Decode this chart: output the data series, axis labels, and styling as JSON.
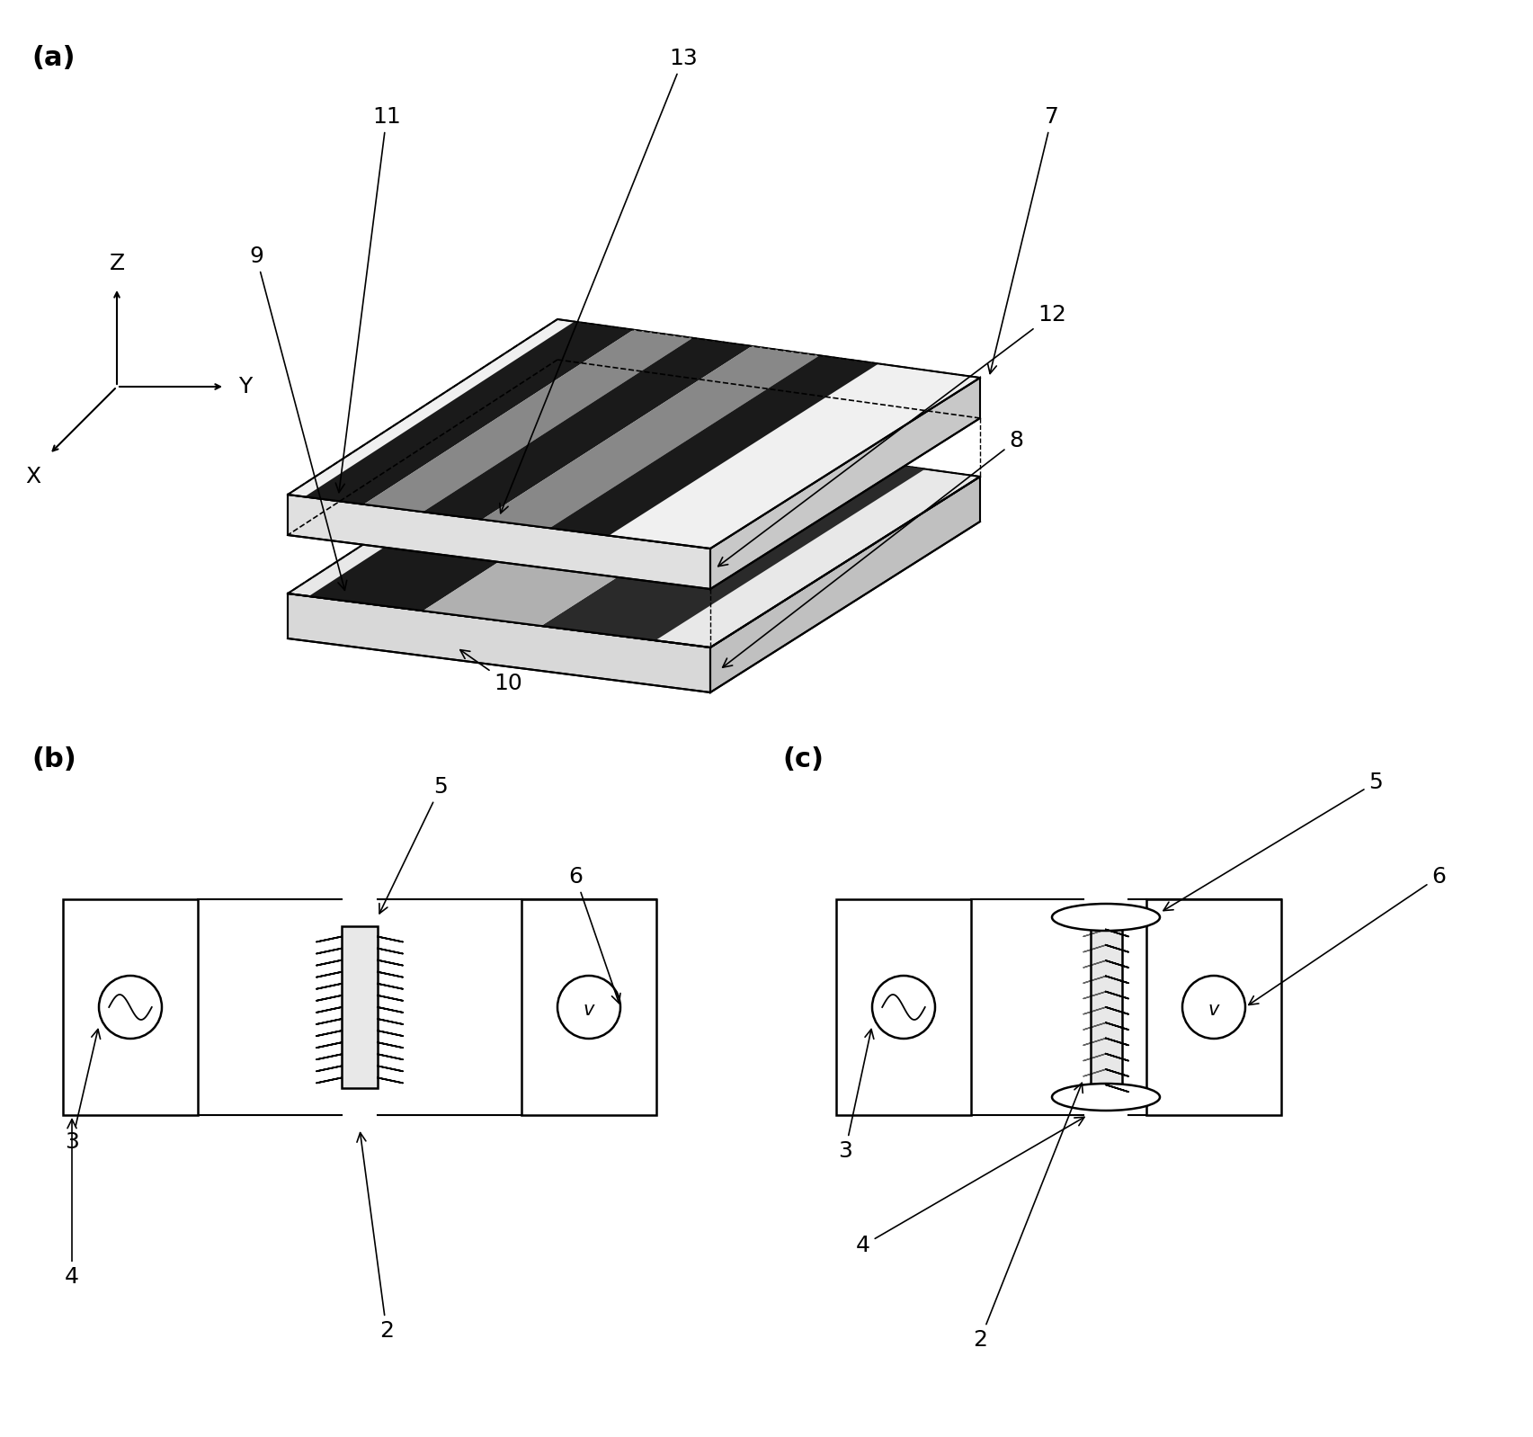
{
  "bg_color": "#ffffff",
  "line_color": "#000000",
  "label_a": "(a)",
  "label_b": "(b)",
  "label_c": "(c)",
  "font_size_label": 22,
  "font_size_numbers": 18,
  "font_size_axis": 18
}
